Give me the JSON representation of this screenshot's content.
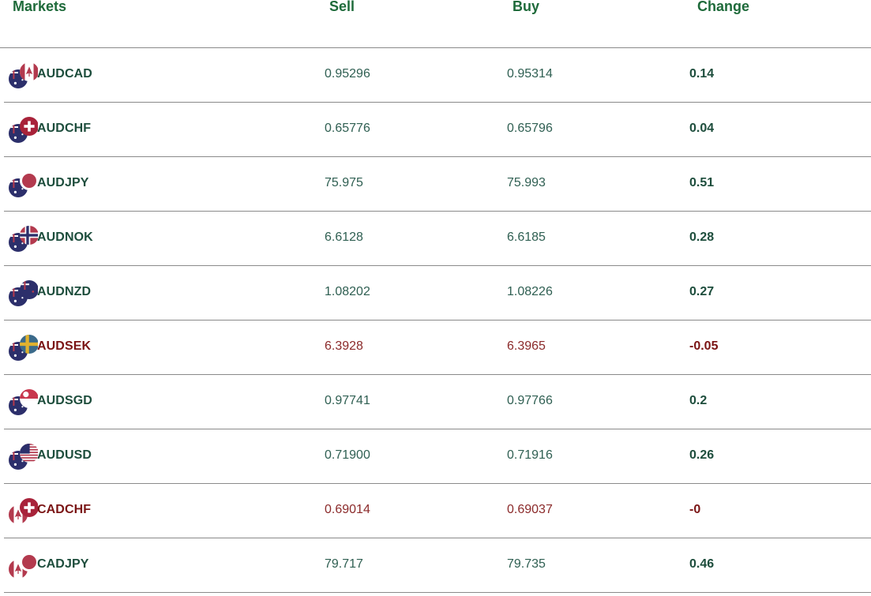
{
  "header": {
    "markets": "Markets",
    "sell": "Sell",
    "buy": "Buy",
    "change": "Change"
  },
  "colors": {
    "up_text": "#1d4d3c",
    "down_text": "#7a1414",
    "header_text": "#1e6a3a",
    "divider": "#8a8a8a"
  },
  "rows": [
    {
      "pair": "AUDCAD",
      "sell": "0.95296",
      "buy": "0.95314",
      "change": "0.14",
      "trend": "up",
      "base_flag": "australia-flag-icon",
      "quote_flag": "canada-flag-icon"
    },
    {
      "pair": "AUDCHF",
      "sell": "0.65776",
      "buy": "0.65796",
      "change": "0.04",
      "trend": "up",
      "base_flag": "australia-flag-icon",
      "quote_flag": "switzerland-flag-icon"
    },
    {
      "pair": "AUDJPY",
      "sell": "75.975",
      "buy": "75.993",
      "change": "0.51",
      "trend": "up",
      "base_flag": "australia-flag-icon",
      "quote_flag": "japan-flag-icon"
    },
    {
      "pair": "AUDNOK",
      "sell": "6.6128",
      "buy": "6.6185",
      "change": "0.28",
      "trend": "up",
      "base_flag": "australia-flag-icon",
      "quote_flag": "norway-flag-icon"
    },
    {
      "pair": "AUDNZD",
      "sell": "1.08202",
      "buy": "1.08226",
      "change": "0.27",
      "trend": "up",
      "base_flag": "australia-flag-icon",
      "quote_flag": "new-zealand-flag-icon"
    },
    {
      "pair": "AUDSEK",
      "sell": "6.3928",
      "buy": "6.3965",
      "change": "-0.05",
      "trend": "down",
      "base_flag": "australia-flag-icon",
      "quote_flag": "sweden-flag-icon"
    },
    {
      "pair": "AUDSGD",
      "sell": "0.97741",
      "buy": "0.97766",
      "change": "0.2",
      "trend": "up",
      "base_flag": "australia-flag-icon",
      "quote_flag": "singapore-flag-icon"
    },
    {
      "pair": "AUDUSD",
      "sell": "0.71900",
      "buy": "0.71916",
      "change": "0.26",
      "trend": "up",
      "base_flag": "australia-flag-icon",
      "quote_flag": "usa-flag-icon"
    },
    {
      "pair": "CADCHF",
      "sell": "0.69014",
      "buy": "0.69037",
      "change": "-0",
      "trend": "down",
      "base_flag": "canada-flag-icon",
      "quote_flag": "switzerland-flag-icon"
    },
    {
      "pair": "CADJPY",
      "sell": "79.717",
      "buy": "79.735",
      "change": "0.46",
      "trend": "up",
      "base_flag": "canada-flag-icon",
      "quote_flag": "japan-flag-icon"
    }
  ]
}
